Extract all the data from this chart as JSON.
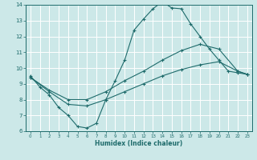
{
  "xlabel": "Humidex (Indice chaleur)",
  "xlim": [
    -0.5,
    23.5
  ],
  "ylim": [
    6,
    14
  ],
  "xticks": [
    0,
    1,
    2,
    3,
    4,
    5,
    6,
    7,
    8,
    9,
    10,
    11,
    12,
    13,
    14,
    15,
    16,
    17,
    18,
    19,
    20,
    21,
    22,
    23
  ],
  "yticks": [
    6,
    7,
    8,
    9,
    10,
    11,
    12,
    13,
    14
  ],
  "bg_color": "#cce8e8",
  "line_color": "#1e6b6b",
  "grid_color": "#b0d4d4",
  "line1_x": [
    0,
    1,
    2,
    3,
    4,
    5,
    6,
    7,
    8,
    9,
    10,
    11,
    12,
    13,
    14,
    15,
    16,
    17,
    18,
    19,
    20,
    21,
    22,
    23
  ],
  "line1_y": [
    9.5,
    8.8,
    8.3,
    7.5,
    7.0,
    6.3,
    6.2,
    6.5,
    8.0,
    9.2,
    10.5,
    12.4,
    13.1,
    13.75,
    14.2,
    13.8,
    13.75,
    12.8,
    12.0,
    11.2,
    10.5,
    9.8,
    9.7,
    9.6
  ],
  "line2_x": [
    0,
    2,
    4,
    6,
    8,
    10,
    12,
    14,
    16,
    18,
    20,
    22,
    23
  ],
  "line2_y": [
    9.4,
    8.6,
    8.0,
    8.0,
    8.5,
    9.2,
    9.8,
    10.5,
    11.1,
    11.5,
    11.2,
    9.8,
    9.6
  ],
  "line3_x": [
    0,
    2,
    4,
    6,
    8,
    10,
    12,
    14,
    16,
    18,
    20,
    22,
    23
  ],
  "line3_y": [
    9.4,
    8.5,
    7.7,
    7.6,
    8.0,
    8.5,
    9.0,
    9.5,
    9.9,
    10.2,
    10.4,
    9.8,
    9.6
  ]
}
